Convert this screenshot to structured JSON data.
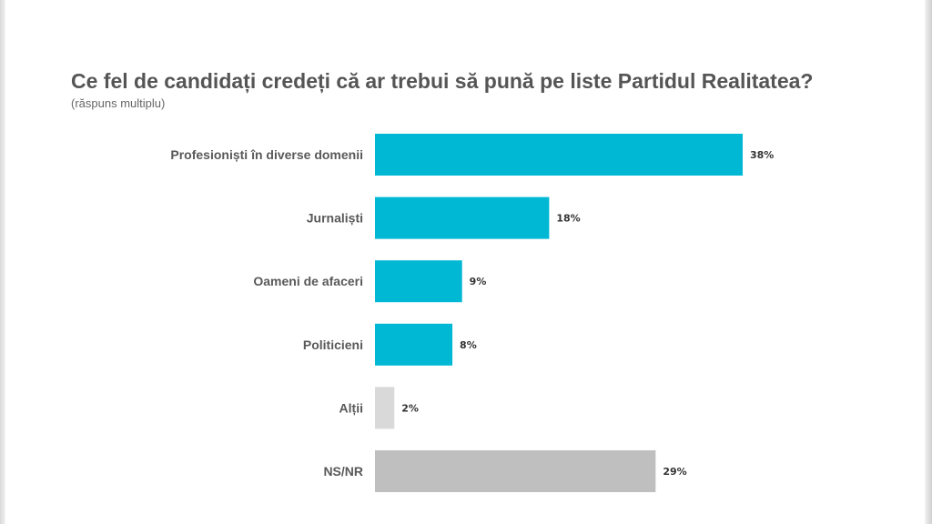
{
  "chart_data": {
    "type": "bar",
    "orientation": "horizontal",
    "title": "Ce fel de candidați credeți că ar trebui să pună pe liste Partidul Realitatea?",
    "subtitle": "(răspuns multiplu)",
    "categories": [
      "Profesioniști în diverse domenii",
      "Jurnaliști",
      "Oameni de afaceri",
      "Politicieni",
      "Alții",
      "NS/NR"
    ],
    "values": [
      38,
      18,
      9,
      8,
      2,
      29
    ],
    "value_labels": [
      "38%",
      "18%",
      "9%",
      "8%",
      "2%",
      "29%"
    ],
    "colors": [
      "#00b8d4",
      "#00b8d4",
      "#00b8d4",
      "#00b8d4",
      "#d9d9d9",
      "#bfbfbf"
    ],
    "xlim": [
      0,
      40
    ],
    "grid": false,
    "legend": "none"
  }
}
